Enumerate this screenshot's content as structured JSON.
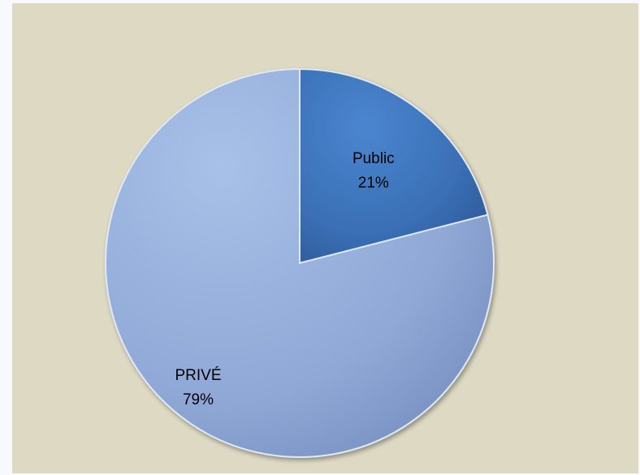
{
  "chart_data": {
    "type": "pie",
    "title": "",
    "slices": [
      {
        "label": "Public",
        "percent_label": "21%",
        "value": 21,
        "color": "#3a6fb5"
      },
      {
        "label": "PRIVÉ",
        "percent_label": "79%",
        "value": 79,
        "color": "#8fa8d6"
      }
    ],
    "legend": "none",
    "background_color": "#ddd9c3"
  }
}
